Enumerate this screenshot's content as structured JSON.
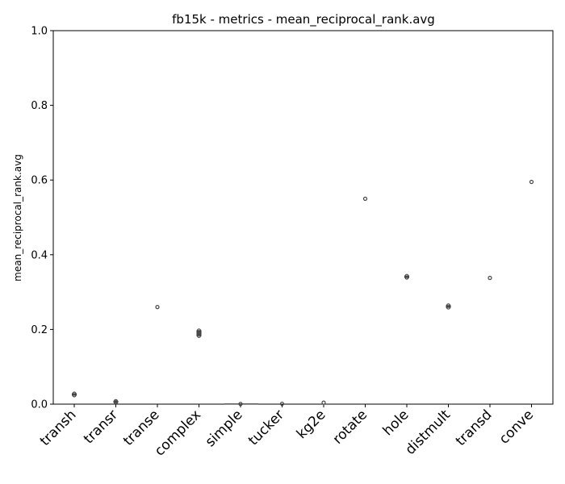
{
  "chart_data": {
    "type": "box",
    "title": "fb15k - metrics - mean_reciprocal_rank.avg",
    "xlabel": "",
    "ylabel": "mean_reciprocal_rank.avg",
    "ylim": [
      0,
      1.0
    ],
    "yticks": [
      "0.0",
      "0.2",
      "0.4",
      "0.6",
      "0.8",
      "1.0"
    ],
    "grid": false,
    "categories": [
      "transh",
      "transr",
      "transe",
      "complex",
      "simple",
      "tucker",
      "kg2e",
      "rotate",
      "hole",
      "distmult",
      "transd",
      "conve"
    ],
    "values": [
      [
        0.024,
        0.028
      ],
      [
        0.005,
        0.008
      ],
      [
        0.26
      ],
      [
        0.183,
        0.188,
        0.192,
        0.197
      ],
      [
        0.0005
      ],
      [
        0.001
      ],
      [
        0.004
      ],
      [
        0.55
      ],
      [
        0.339,
        0.343
      ],
      [
        0.259,
        0.264
      ],
      [
        0.338
      ],
      [
        0.595
      ]
    ]
  }
}
